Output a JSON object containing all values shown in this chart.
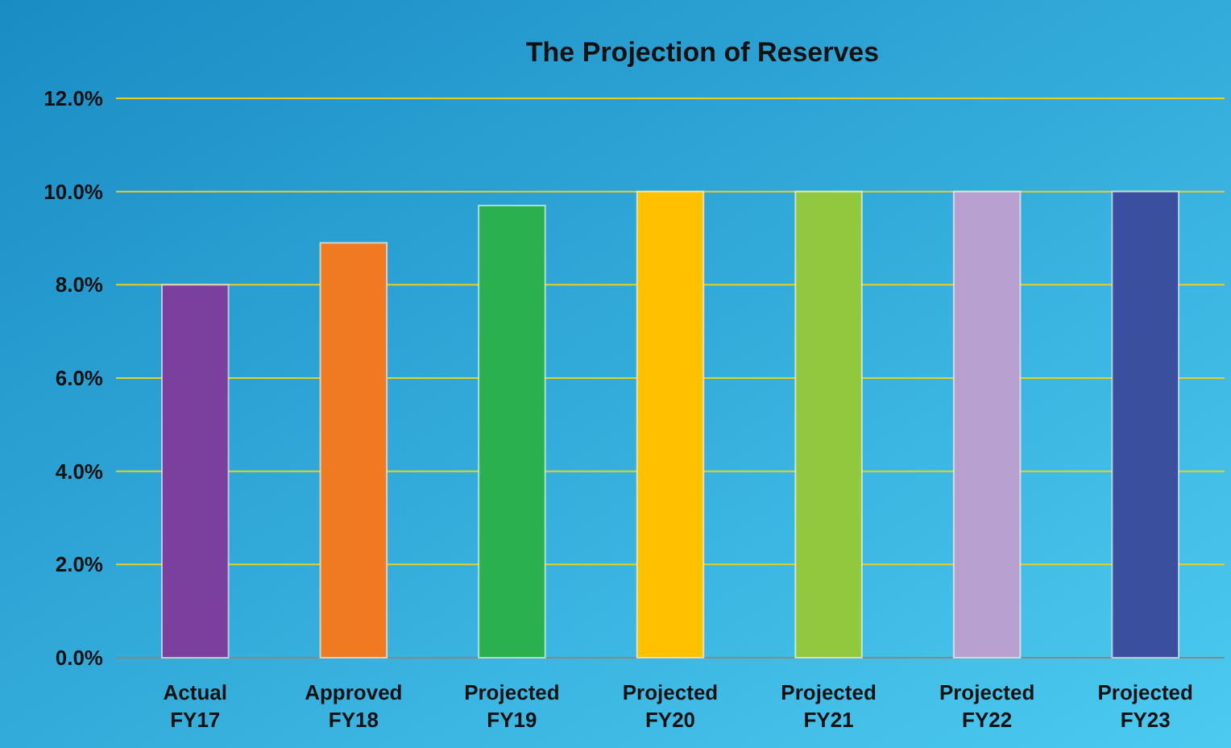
{
  "chart_data": {
    "type": "bar",
    "title": "The Projection of Reserves",
    "categories": [
      "Actual FY17",
      "Approved FY18",
      "Projected FY19",
      "Projected FY20",
      "Projected FY21",
      "Projected FY22",
      "Projected FY23"
    ],
    "values": [
      8.0,
      8.9,
      9.7,
      10.0,
      10.0,
      10.0,
      10.0
    ],
    "colors": [
      "#7b3f9e",
      "#f07a22",
      "#2ab04e",
      "#ffc000",
      "#92c83e",
      "#b8a0d0",
      "#3a4f9e"
    ],
    "ylim": [
      0,
      12
    ],
    "yticks": [
      {
        "value": 0,
        "label": "0.0%"
      },
      {
        "value": 2,
        "label": "2.0%"
      },
      {
        "value": 4,
        "label": "4.0%"
      },
      {
        "value": 6,
        "label": "6.0%"
      },
      {
        "value": 8,
        "label": "8.0%"
      },
      {
        "value": 10,
        "label": "10.0%"
      },
      {
        "value": 12,
        "label": "12.0%"
      }
    ],
    "grid": "y"
  }
}
